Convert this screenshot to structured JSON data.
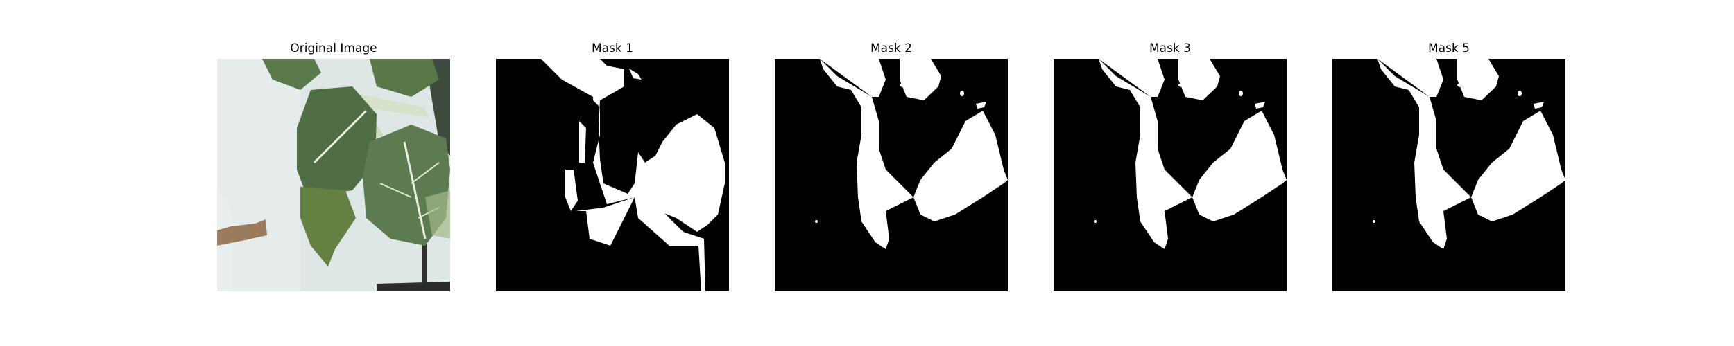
{
  "panels": [
    {
      "title": "Original Image",
      "kind": "photo"
    },
    {
      "title": "Mask 1",
      "kind": "mask"
    },
    {
      "title": "Mask 2",
      "kind": "mask"
    },
    {
      "title": "Mask 3",
      "kind": "mask"
    },
    {
      "title": "Mask 5",
      "kind": "mask"
    }
  ],
  "colors": {
    "mask_foreground": "#ffffff",
    "mask_background": "#000000",
    "photo_background": "#dfe6e6",
    "leaf_dark": "#4f6e45",
    "leaf_light": "#6f8f5c",
    "leaf_vein": "#e8efe0",
    "dry_leaf": "#9b7b5b"
  }
}
